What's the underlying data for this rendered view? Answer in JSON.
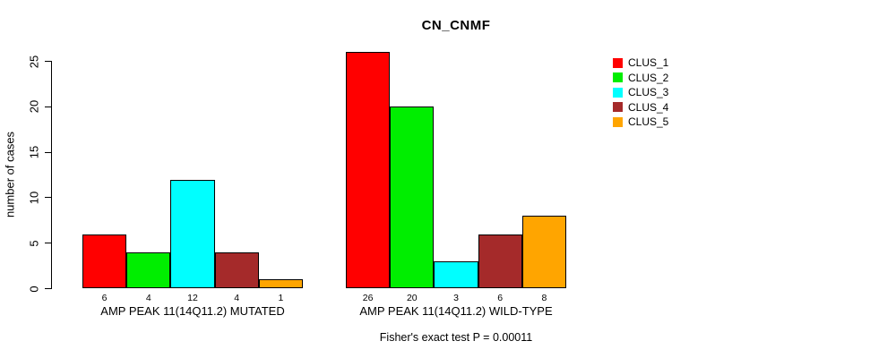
{
  "chart_data": {
    "type": "bar",
    "title": "CN_CNMF",
    "ylabel": "number of cases",
    "ylim": [
      0,
      25
    ],
    "yticks": [
      0,
      5,
      10,
      15,
      20,
      25
    ],
    "grid": false,
    "legend_position": "right",
    "categories": [
      "AMP PEAK 11(14Q11.2) MUTATED",
      "AMP PEAK 11(14Q11.2) WILD-TYPE"
    ],
    "series": [
      {
        "name": "CLUS_1",
        "color": "#FF0000",
        "values": [
          6,
          26
        ]
      },
      {
        "name": "CLUS_2",
        "color": "#00EE00",
        "values": [
          4,
          20
        ]
      },
      {
        "name": "CLUS_3",
        "color": "#00FFFF",
        "values": [
          12,
          3
        ]
      },
      {
        "name": "CLUS_4",
        "color": "#A52A2A",
        "values": [
          4,
          6
        ]
      },
      {
        "name": "CLUS_5",
        "color": "#FFA500",
        "values": [
          1,
          8
        ]
      }
    ],
    "bar_value_labels": [
      [
        6,
        4,
        12,
        4,
        1
      ],
      [
        26,
        20,
        3,
        6,
        8
      ]
    ],
    "caption": "Fisher's exact test P = 0.00011",
    "axis_color": "#000000",
    "bar_border_color": "#000000",
    "background_color": "#FFFFFF"
  }
}
